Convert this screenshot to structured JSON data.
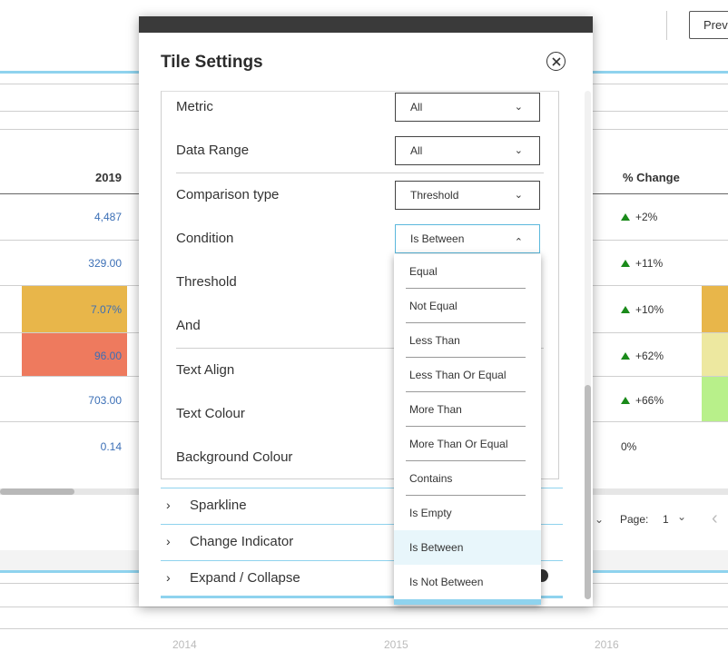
{
  "background": {
    "preview_button": "Prev",
    "columns": {
      "year_header": "2019",
      "change_header": "% Change"
    },
    "values": [
      "4,487",
      "329.00",
      "7.07%",
      "96.00",
      "703.00",
      "0.14"
    ],
    "changes": [
      "+2%",
      "+11%",
      "+10%",
      "+62%",
      "+66%",
      "0%"
    ],
    "pager": {
      "label": "Page:",
      "value": "1"
    },
    "years": [
      "2014",
      "2015",
      "2016"
    ],
    "colors": {
      "heat_orange": "#e8b64a",
      "heat_red": "#ee7a5e",
      "heat_yellow": "#ede8a0",
      "heat_green": "#b8f08a",
      "up_arrow": "#1a8a1a",
      "accent": "#8fd3ee"
    }
  },
  "modal": {
    "title": "Tile Settings",
    "close_icon": "close-circle-icon",
    "rows": [
      {
        "label": "Metric",
        "select": "All"
      },
      {
        "label": "Data Range",
        "select": "All"
      },
      {
        "label": "Comparison type",
        "select": "Threshold"
      },
      {
        "label": "Condition",
        "select": "Is Between"
      },
      {
        "label": "Threshold"
      },
      {
        "label": "And"
      },
      {
        "label": "Text Align"
      },
      {
        "label": "Text Colour"
      },
      {
        "label": "Background Colour"
      }
    ],
    "sections": [
      "Sparkline",
      "Change Indicator",
      "Expand / Collapse"
    ]
  },
  "condition_dropdown": {
    "options": [
      "Equal",
      "Not Equal",
      "Less Than",
      "Less Than Or Equal",
      "More Than",
      "More Than Or Equal",
      "Contains",
      "Is Empty",
      "Is Between",
      "Is Not Between"
    ],
    "selected": "Is Between"
  }
}
